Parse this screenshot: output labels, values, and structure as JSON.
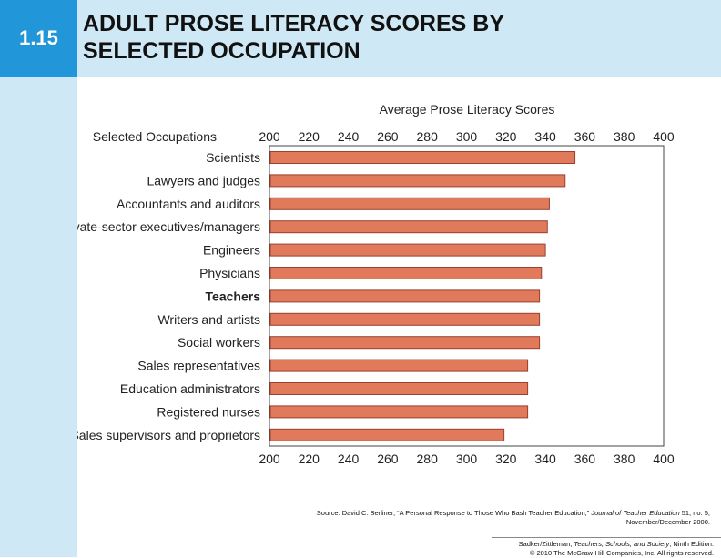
{
  "slide": {
    "number": "1.15",
    "title_line1": "ADULT PROSE LITERACY SCORES BY",
    "title_line2": "SELECTED OCCUPATION"
  },
  "colors": {
    "bar": "#e07a5a",
    "bar_stroke": "#9a4030",
    "header_bg": "#cfe8f5",
    "number_box": "#2196d8"
  },
  "chart_data": {
    "type": "bar",
    "orientation": "horizontal",
    "title": "Average Prose Literacy Scores",
    "category_header": "Selected Occupations",
    "categories": [
      "Scientists",
      "Lawyers and judges",
      "Accountants and auditors",
      "Private-sector executives/managers",
      "Engineers",
      "Physicians",
      "Teachers",
      "Writers and artists",
      "Social workers",
      "Sales representatives",
      "Education administrators",
      "Registered nurses",
      "Sales supervisors and proprietors"
    ],
    "highlighted_category": "Teachers",
    "values": [
      355,
      350,
      342,
      341,
      340,
      338,
      337,
      337,
      337,
      331,
      331,
      331,
      319
    ],
    "xlim": [
      200,
      400
    ],
    "ticks": [
      200,
      220,
      240,
      260,
      280,
      300,
      320,
      340,
      360,
      380,
      400
    ],
    "tick_labels": [
      "200",
      "220",
      "240",
      "260",
      "280",
      "300",
      "320",
      "340",
      "360",
      "380",
      "400"
    ],
    "grid": false
  },
  "source": {
    "prefix": "Source: David C. Berliner, “A Personal Response to Those Who Bash Teacher Education,”",
    "journal": "Journal of Teacher Education",
    "suffix": "51, no. 5,",
    "line2": "November/December 2000."
  },
  "credit": {
    "authors": "Sadker/Zittleman,",
    "book": "Teachers, Schools, and Society",
    "edition": ", Ninth Edition.",
    "line2": "© 2010 The McGraw-Hill Companies, Inc. All rights reserved."
  }
}
